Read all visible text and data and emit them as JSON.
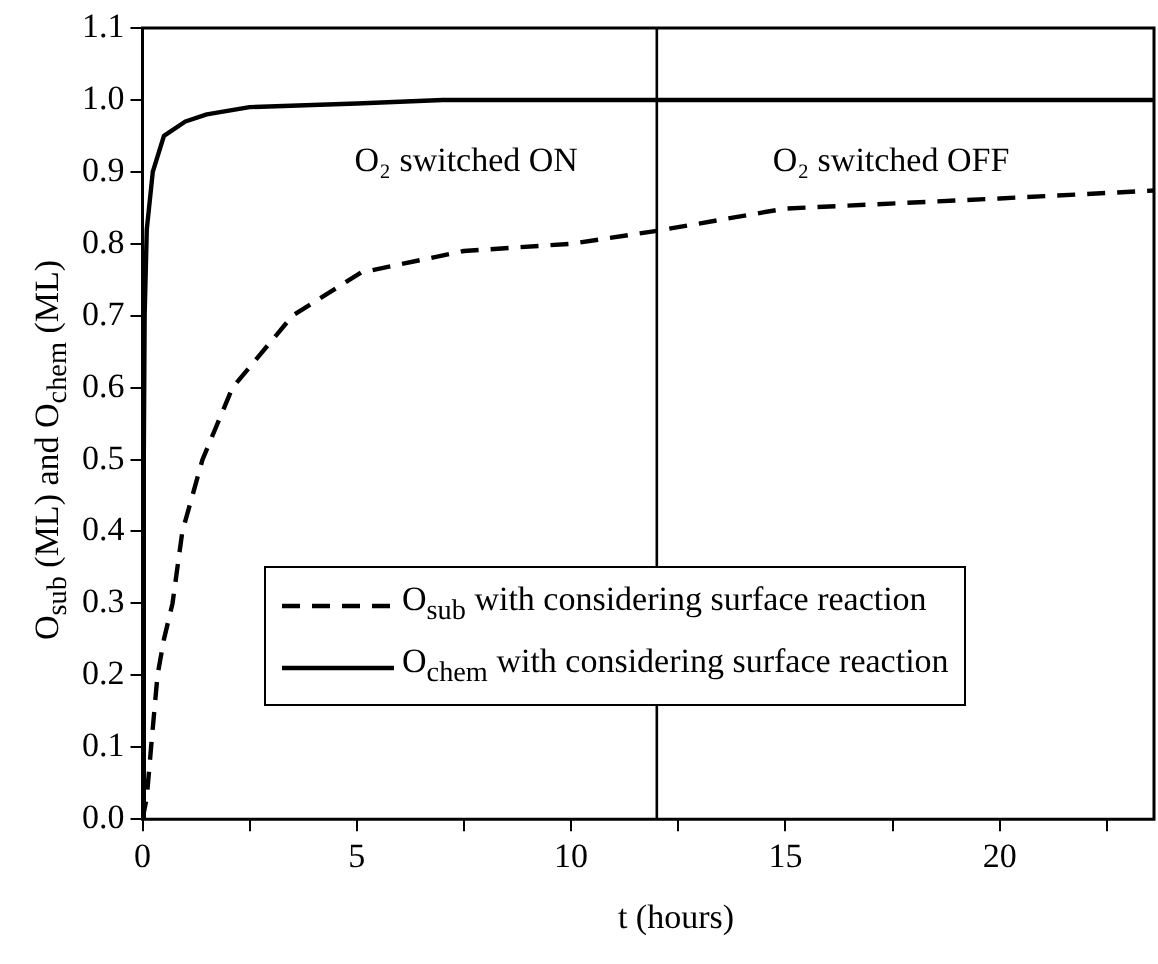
{
  "chart_data": {
    "type": "line",
    "xlabel": "t (hours)",
    "ylabel": "O$_{sub}$ (ML) and O$_{chem}$ (ML)",
    "xlim": [
      0,
      23.6
    ],
    "ylim": [
      0,
      1.1
    ],
    "xticks": [
      0,
      {
        "value": 2.5,
        "label": null
      },
      5,
      {
        "value": 7.5,
        "label": null
      },
      10,
      {
        "value": 12.5,
        "label": null
      },
      15,
      {
        "value": 17.5,
        "label": null
      },
      20,
      {
        "value": 22.5,
        "label": null
      }
    ],
    "yticks": [
      {
        "value": 0,
        "label": "0.0"
      },
      0.1,
      0.2,
      0.3,
      0.4,
      0.5,
      0.6,
      0.7,
      0.8,
      0.9,
      {
        "value": 1,
        "label": "1.0"
      },
      1.1
    ],
    "legend": "bottom",
    "marker": "none",
    "ref_lines": [
      {
        "axis": "x",
        "value": 12,
        "color": "#000000"
      }
    ],
    "annotations": [
      "O₂ switched ON",
      "O₂ switched OFF"
    ],
    "series": [
      {
        "name": "O$_{sub}$ with considering surface reaction",
        "color": "#000000",
        "line_style": "dashed",
        "x": [
          0,
          0.1,
          0.2,
          0.35,
          0.5,
          0.7,
          0.93,
          1.4,
          2.1,
          3.5,
          5.1,
          7.5,
          10,
          12,
          15,
          20,
          23.6
        ],
        "values": [
          0,
          0.03,
          0.1,
          0.2,
          0.25,
          0.3,
          0.4,
          0.5,
          0.6,
          0.7,
          0.76,
          0.79,
          0.8,
          0.818,
          0.849,
          0.863,
          0.874
        ]
      },
      {
        "name": "O$_{chem}$ with considering surface reaction",
        "color": "#000000",
        "line_style": "solid",
        "x": [
          0,
          0.03,
          0.05,
          0.1,
          0.24,
          0.5,
          1,
          1.5,
          2.5,
          5,
          7,
          12,
          23.6
        ],
        "values": [
          0,
          0.5,
          0.7,
          0.82,
          0.9,
          0.95,
          0.97,
          0.98,
          0.99,
          0.995,
          1,
          1,
          1
        ]
      }
    ]
  }
}
